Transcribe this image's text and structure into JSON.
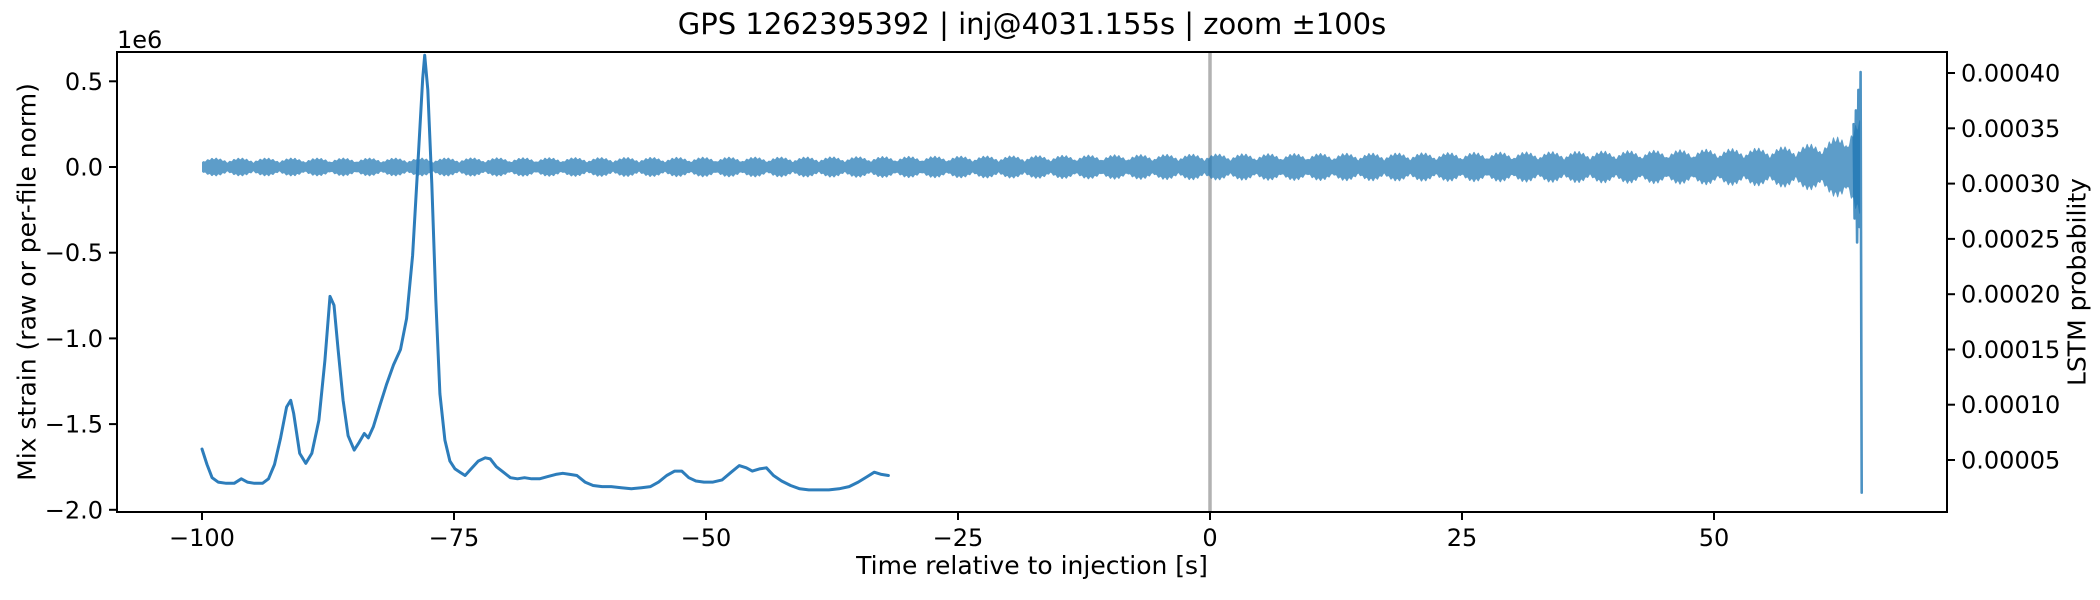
{
  "figure": {
    "title": "GPS 1262395392 | inj@4031.155s | zoom ±100s",
    "xlabel": "Time relative to injection [s]",
    "ylabel_left": "Mix strain (raw or per-file norm)",
    "ylabel_right": "LSTM probability",
    "offset_text": "1e6",
    "colors": {
      "strain": "#1f77b4",
      "probability": "#2d7dbb",
      "injection_line": "#b2b2b2",
      "spine": "#000000",
      "background": "#ffffff"
    }
  },
  "chart_data": {
    "type": "line",
    "title": "GPS 1262395392 | inj@4031.155s | zoom ±100s",
    "xlabel": "Time relative to injection [s]",
    "ylabel_left": "Mix strain (raw or per-file norm)",
    "ylabel_right": "LSTM probability",
    "legend": "none",
    "grid": false,
    "vline_x": 0,
    "axes": {
      "x": {
        "lim": [
          -108.43,
          73.12
        ],
        "ticks": [
          -100,
          -75,
          -50,
          -25,
          0,
          25,
          50
        ],
        "tick_labels": [
          "−100",
          "−75",
          "−50",
          "−25",
          "0",
          "25",
          "50"
        ]
      },
      "y_left": {
        "offset_factor": "1e6",
        "lim": [
          -2013000,
          671000
        ],
        "ticks": [
          500000,
          0,
          -500000,
          -1000000,
          -1500000,
          -2000000
        ],
        "tick_labels": [
          "0.5",
          "0.0",
          "−0.5",
          "−1.0",
          "−1.5",
          "−2.0"
        ]
      },
      "y_right": {
        "lim": [
          3e-06,
          0.000419
        ],
        "ticks": [
          0.0004,
          0.00035,
          0.0003,
          0.00025,
          0.0002,
          0.00015,
          0.0001,
          5e-05
        ],
        "tick_labels": [
          "0.00040",
          "0.00035",
          "0.00030",
          "0.00025",
          "0.00020",
          "0.00015",
          "0.00010",
          "0.00005"
        ]
      }
    },
    "series": [
      {
        "name": "strain",
        "axis": "left",
        "style": "amplitude-modulated oscillation band around 0, beaded lobes, amplitude grows to the right, ends in a glitch spike",
        "representation": "amplitude_envelope",
        "t_range": [
          -100,
          64.5
        ],
        "beat_period_s": 2.55,
        "carrier_ripple_hz": 2.3,
        "envelope": [
          [
            -100,
            50000
          ],
          [
            -80,
            50000
          ],
          [
            -60,
            53000
          ],
          [
            -40,
            56000
          ],
          [
            -20,
            62000
          ],
          [
            0,
            72000
          ],
          [
            15,
            76000
          ],
          [
            30,
            82000
          ],
          [
            45,
            92000
          ],
          [
            55,
            105000
          ],
          [
            58,
            115000
          ],
          [
            60,
            130000
          ],
          [
            61.5,
            150000
          ],
          [
            62.5,
            175000
          ],
          [
            63.2,
            200000
          ],
          [
            63.8,
            230000
          ],
          [
            64.3,
            250000
          ],
          [
            64.5,
            250000
          ]
        ],
        "glitch_line": [
          [
            63.85,
            250000
          ],
          [
            63.95,
            -300000
          ],
          [
            64.08,
            330000
          ],
          [
            64.2,
            -440000
          ],
          [
            64.33,
            450000
          ],
          [
            64.45,
            -350000
          ],
          [
            64.55,
            554000
          ],
          [
            64.66,
            -1900000
          ]
        ]
      },
      {
        "name": "lstm_probability",
        "axis": "right",
        "style": "solid line, spans t = -100 s to -32 s, baseline near 3e-5 with peaks at t ≈ -91, -87 and a large peak at t ≈ -78",
        "points": [
          [
            -100.0,
            6e-05
          ],
          [
            -99.5,
            4.6e-05
          ],
          [
            -99.0,
            3.4e-05
          ],
          [
            -98.4,
            3e-05
          ],
          [
            -97.6,
            2.9e-05
          ],
          [
            -96.8,
            2.9e-05
          ],
          [
            -96.1,
            3.3e-05
          ],
          [
            -95.5,
            3e-05
          ],
          [
            -94.8,
            2.9e-05
          ],
          [
            -94.0,
            2.9e-05
          ],
          [
            -93.4,
            3.3e-05
          ],
          [
            -92.8,
            4.6e-05
          ],
          [
            -92.2,
            7e-05
          ],
          [
            -91.6,
            9.8e-05
          ],
          [
            -91.2,
            0.000104
          ],
          [
            -90.9,
            9.2e-05
          ],
          [
            -90.3,
            5.6e-05
          ],
          [
            -89.7,
            4.7e-05
          ],
          [
            -89.1,
            5.6e-05
          ],
          [
            -88.4,
            8.6e-05
          ],
          [
            -87.8,
            0.00014
          ],
          [
            -87.3,
            0.000198
          ],
          [
            -86.9,
            0.00019
          ],
          [
            -86.5,
            0.00015
          ],
          [
            -86.0,
            0.000104
          ],
          [
            -85.5,
            7.2e-05
          ],
          [
            -84.9,
            5.9e-05
          ],
          [
            -84.4,
            6.6e-05
          ],
          [
            -83.9,
            7.4e-05
          ],
          [
            -83.5,
            7e-05
          ],
          [
            -83.0,
            8e-05
          ],
          [
            -82.4,
            9.8e-05
          ],
          [
            -81.7,
            0.000118
          ],
          [
            -81.0,
            0.000136
          ],
          [
            -80.3,
            0.00015
          ],
          [
            -79.7,
            0.000178
          ],
          [
            -79.1,
            0.000235
          ],
          [
            -78.6,
            0.000315
          ],
          [
            -78.1,
            0.000395
          ],
          [
            -77.9,
            0.000416
          ],
          [
            -77.6,
            0.000385
          ],
          [
            -77.2,
            0.0003
          ],
          [
            -76.8,
            0.000195
          ],
          [
            -76.4,
            0.00011
          ],
          [
            -75.9,
            6.8e-05
          ],
          [
            -75.4,
            4.9e-05
          ],
          [
            -74.9,
            4.2e-05
          ],
          [
            -74.4,
            3.9e-05
          ],
          [
            -73.9,
            3.6e-05
          ],
          [
            -73.3,
            4.2e-05
          ],
          [
            -72.6,
            4.9e-05
          ],
          [
            -71.9,
            5.2e-05
          ],
          [
            -71.4,
            5.1e-05
          ],
          [
            -70.8,
            4.4e-05
          ],
          [
            -70.1,
            3.9e-05
          ],
          [
            -69.4,
            3.4e-05
          ],
          [
            -68.7,
            3.3e-05
          ],
          [
            -68.0,
            3.4e-05
          ],
          [
            -67.3,
            3.3e-05
          ],
          [
            -66.5,
            3.3e-05
          ],
          [
            -65.7,
            3.5e-05
          ],
          [
            -64.9,
            3.7e-05
          ],
          [
            -64.2,
            3.8e-05
          ],
          [
            -63.5,
            3.7e-05
          ],
          [
            -62.8,
            3.6e-05
          ],
          [
            -62.0,
            3e-05
          ],
          [
            -61.2,
            2.7e-05
          ],
          [
            -60.3,
            2.6e-05
          ],
          [
            -59.4,
            2.6e-05
          ],
          [
            -58.4,
            2.5e-05
          ],
          [
            -57.4,
            2.4e-05
          ],
          [
            -56.4,
            2.5e-05
          ],
          [
            -55.5,
            2.6e-05
          ],
          [
            -54.7,
            3e-05
          ],
          [
            -53.9,
            3.6e-05
          ],
          [
            -53.1,
            4e-05
          ],
          [
            -52.4,
            4e-05
          ],
          [
            -51.7,
            3.4e-05
          ],
          [
            -51.0,
            3.1e-05
          ],
          [
            -50.2,
            3e-05
          ],
          [
            -49.3,
            3e-05
          ],
          [
            -48.4,
            3.2e-05
          ],
          [
            -47.5,
            3.9e-05
          ],
          [
            -46.7,
            4.5e-05
          ],
          [
            -46.0,
            4.3e-05
          ],
          [
            -45.4,
            4e-05
          ],
          [
            -44.7,
            4.2e-05
          ],
          [
            -44.0,
            4.3e-05
          ],
          [
            -43.3,
            3.6e-05
          ],
          [
            -42.5,
            3.1e-05
          ],
          [
            -41.6,
            2.7e-05
          ],
          [
            -40.7,
            2.4e-05
          ],
          [
            -39.8,
            2.3e-05
          ],
          [
            -38.8,
            2.3e-05
          ],
          [
            -37.8,
            2.3e-05
          ],
          [
            -36.8,
            2.4e-05
          ],
          [
            -35.8,
            2.6e-05
          ],
          [
            -34.9,
            3e-05
          ],
          [
            -34.0,
            3.5e-05
          ],
          [
            -33.3,
            3.9e-05
          ],
          [
            -32.6,
            3.7e-05
          ],
          [
            -31.9,
            3.6e-05
          ]
        ]
      }
    ]
  }
}
